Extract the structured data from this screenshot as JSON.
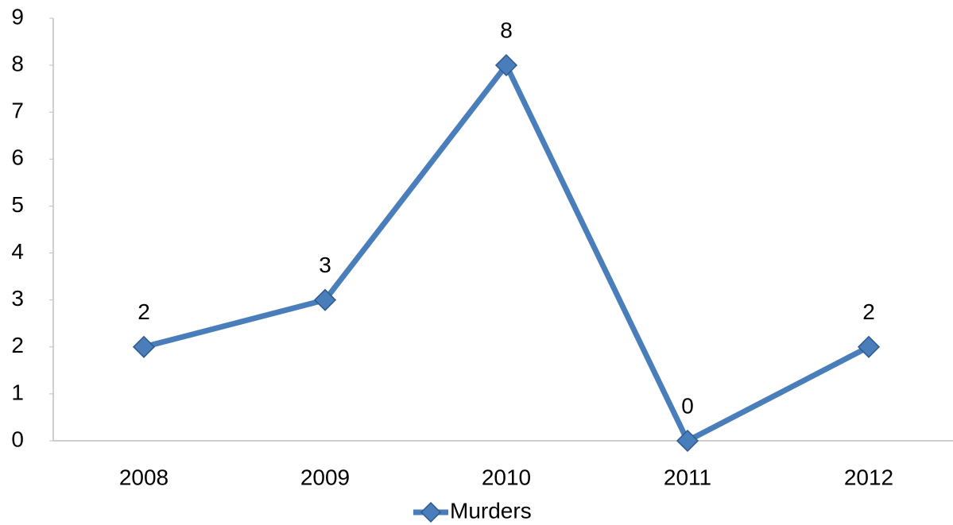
{
  "chart_data": {
    "type": "line",
    "categories": [
      "2008",
      "2009",
      "2010",
      "2011",
      "2012"
    ],
    "series": [
      {
        "name": "Murders",
        "color": "#4a7ebb",
        "values": [
          2,
          3,
          8,
          0,
          2
        ]
      }
    ],
    "ylim": [
      0,
      9
    ],
    "yticks": [
      0,
      1,
      2,
      3,
      4,
      5,
      6,
      7,
      8,
      9
    ],
    "grid": false,
    "legend": "bottom",
    "data_labels": true
  }
}
